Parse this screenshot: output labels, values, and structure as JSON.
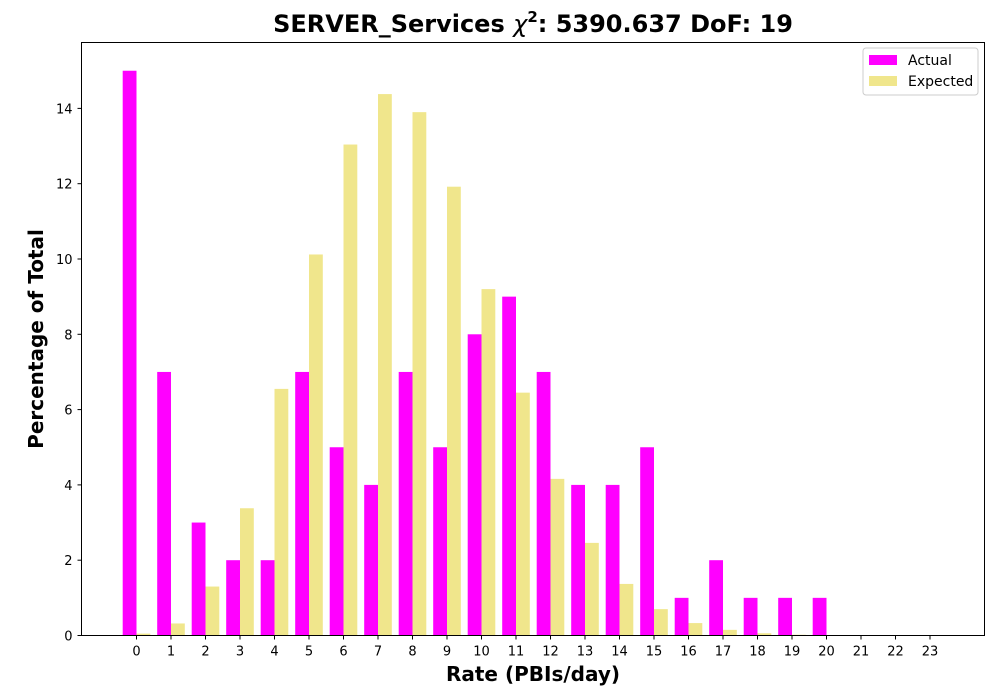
{
  "chart_data": {
    "type": "bar",
    "title": {
      "prefix": "SERVER_Services ",
      "chi_symbol": "χ",
      "chi_exponent": "2",
      "suffix": ": 5390.637 DoF: 19"
    },
    "xlabel": "Rate (PBIs/day)",
    "ylabel": "Percentage of Total",
    "categories": [
      "0",
      "1",
      "2",
      "3",
      "4",
      "5",
      "6",
      "7",
      "8",
      "9",
      "10",
      "11",
      "12",
      "13",
      "14",
      "15",
      "16",
      "17",
      "18",
      "19",
      "20",
      "21",
      "22",
      "23"
    ],
    "ylim": [
      0,
      15.75
    ],
    "yticks": [
      0,
      2,
      4,
      6,
      8,
      10,
      12,
      14
    ],
    "grid": false,
    "legend_position": "top-right",
    "series": [
      {
        "name": "Actual",
        "color": "#ff00ff",
        "values": [
          15,
          7,
          3,
          2,
          2,
          7,
          5,
          4,
          7,
          5,
          8,
          9,
          7,
          4,
          4,
          5,
          1,
          2,
          1,
          1,
          1,
          0,
          0,
          0
        ]
      },
      {
        "name": "Expected",
        "color": "#f0e68c",
        "values": [
          0.05,
          0.32,
          1.3,
          3.38,
          6.55,
          10.12,
          13.04,
          14.38,
          13.9,
          11.92,
          9.2,
          6.45,
          4.16,
          2.46,
          1.37,
          0.7,
          0.33,
          0.15,
          0.06,
          0.02,
          0.01,
          0.0,
          0.0,
          0.0
        ]
      }
    ]
  }
}
